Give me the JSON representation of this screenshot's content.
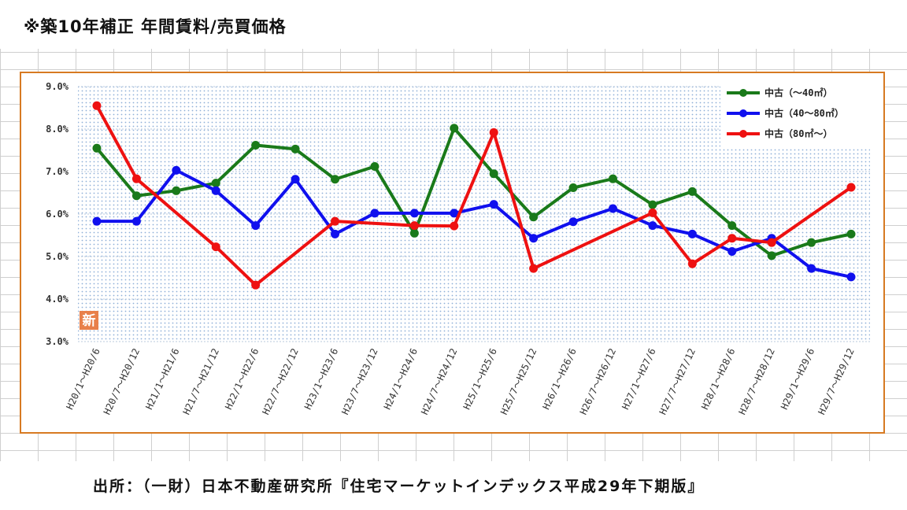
{
  "header": {
    "title": "※築10年補正 年間賃料/売買価格"
  },
  "footer": {
    "source": "出所：（一財）日本不動産研究所『住宅マーケットインデックス平成29年下期版』"
  },
  "badge": {
    "text": "新"
  },
  "colors": {
    "frame": "#d77a22",
    "badge": "#e8804a"
  },
  "chart_data": {
    "type": "line",
    "categories": [
      "H20/1～H20/6",
      "H20/7～H20/12",
      "H21/1～H21/6",
      "H21/7～H21/12",
      "H22/1～H22/6",
      "H22/7～H22/12",
      "H23/1～H23/6",
      "H23/7～H23/12",
      "H24/1～H24/6",
      "H24/7～H24/12",
      "H25/1～H25/6",
      "H25/7～H25/12",
      "H26/1～H26/6",
      "H26/7～H26/12",
      "H27/1～H27/6",
      "H27/7～H27/12",
      "H28/1～H28/6",
      "H28/7～H28/12",
      "H29/1～H29/6",
      "H29/7～H29/12"
    ],
    "ylim": [
      3.0,
      9.0
    ],
    "yticks": [
      "3.0%",
      "4.0%",
      "5.0%",
      "6.0%",
      "7.0%",
      "8.0%",
      "9.0%"
    ],
    "grid": true,
    "legend_position": "top-right",
    "series": [
      {
        "name": "中古（～40㎡）",
        "color": "#1a7a1a",
        "values": [
          7.55,
          6.43,
          6.55,
          6.73,
          7.62,
          7.53,
          6.82,
          7.12,
          5.55,
          8.02,
          6.95,
          5.93,
          6.62,
          6.83,
          6.22,
          6.53,
          5.73,
          5.02,
          5.33,
          5.53
        ]
      },
      {
        "name": "中古（40～80㎡）",
        "color": "#1010ee",
        "values": [
          5.83,
          5.83,
          7.03,
          6.55,
          5.73,
          6.82,
          5.53,
          6.02,
          6.02,
          6.02,
          6.23,
          5.43,
          5.82,
          6.13,
          5.73,
          5.53,
          5.12,
          5.43,
          4.72,
          4.52
        ]
      },
      {
        "name": "中古（80㎡～）",
        "color": "#ee1111",
        "values": [
          8.55,
          6.83,
          null,
          5.23,
          4.33,
          null,
          5.83,
          null,
          5.73,
          5.72,
          7.92,
          4.72,
          null,
          null,
          6.03,
          4.83,
          5.43,
          5.33,
          null,
          6.63
        ]
      }
    ]
  }
}
